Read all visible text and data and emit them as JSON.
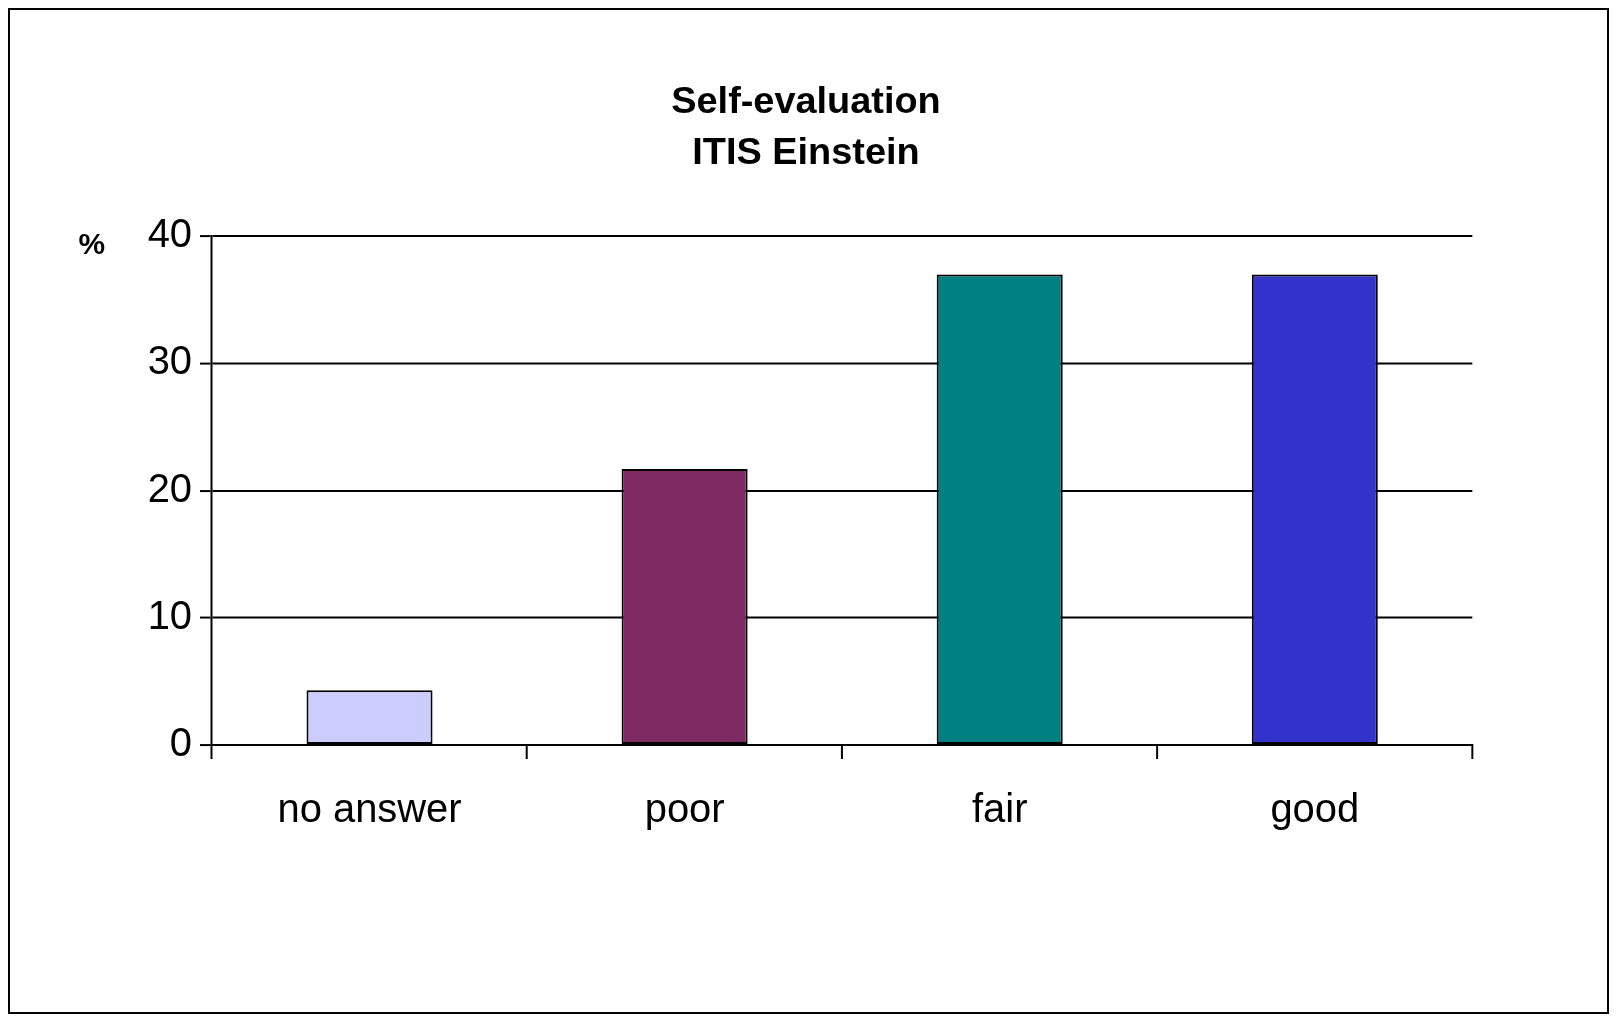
{
  "chart_data": {
    "type": "bar",
    "title": "Self-evaluation",
    "subtitle": "ITIS Einstein",
    "ylabel": "%",
    "categories": [
      "no answer",
      "poor",
      "fair",
      "good"
    ],
    "values": [
      4.3,
      21.7,
      37.0,
      37.0
    ],
    "colors": [
      "#ccccff",
      "#7f2a62",
      "#008080",
      "#3333cc"
    ],
    "ylim": [
      0,
      40
    ],
    "yticks": [
      0,
      10,
      20,
      30,
      40
    ],
    "grid": "y",
    "legend": false
  }
}
